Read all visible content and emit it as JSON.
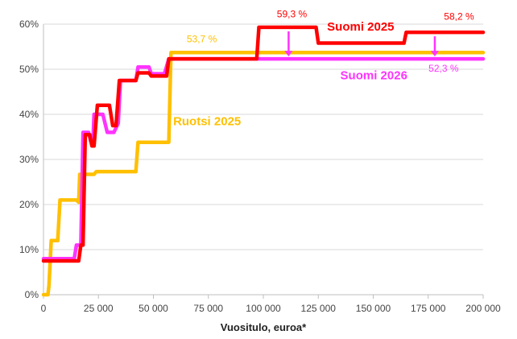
{
  "chart_data": {
    "type": "line",
    "xlabel": "Vuositulo, euroa*",
    "ylabel": "",
    "xlim": [
      0,
      200000
    ],
    "ylim": [
      0,
      60
    ],
    "x_ticks": [
      0,
      25000,
      50000,
      75000,
      100000,
      125000,
      150000,
      175000,
      200000
    ],
    "x_tick_labels": [
      "0",
      "25 000",
      "50 000",
      "75 000",
      "100 000",
      "125 000",
      "150 000",
      "175 000",
      "200 000"
    ],
    "y_ticks": [
      0,
      10,
      20,
      30,
      40,
      50,
      60
    ],
    "y_tick_labels": [
      "0%",
      "10%",
      "20%",
      "30%",
      "40%",
      "50%",
      "60%"
    ],
    "grid": "horizontal",
    "series": [
      {
        "name": "Ruotsi 2025",
        "color": "#ffc000",
        "points": [
          [
            0,
            0
          ],
          [
            2000,
            0
          ],
          [
            2500,
            2
          ],
          [
            3500,
            12
          ],
          [
            6500,
            12
          ],
          [
            7500,
            21
          ],
          [
            15000,
            21
          ],
          [
            16000,
            20.5
          ],
          [
            16500,
            26.7
          ],
          [
            23000,
            26.7
          ],
          [
            24000,
            27.3
          ],
          [
            42000,
            27.3
          ],
          [
            43000,
            33.8
          ],
          [
            57000,
            33.8
          ],
          [
            58000,
            53.7
          ],
          [
            200000,
            53.7
          ]
        ]
      },
      {
        "name": "Suomi 2026",
        "color": "#ff33ff",
        "points": [
          [
            0,
            8
          ],
          [
            14000,
            8
          ],
          [
            15000,
            11
          ],
          [
            17000,
            11
          ],
          [
            18000,
            36
          ],
          [
            20500,
            36
          ],
          [
            21500,
            34
          ],
          [
            22500,
            34
          ],
          [
            23000,
            40
          ],
          [
            27000,
            40
          ],
          [
            29000,
            36
          ],
          [
            32000,
            36
          ],
          [
            34000,
            38
          ],
          [
            35000,
            47.5
          ],
          [
            42000,
            47.5
          ],
          [
            43000,
            50.5
          ],
          [
            48000,
            50.5
          ],
          [
            49000,
            49
          ],
          [
            55000,
            49
          ],
          [
            57000,
            52.3
          ],
          [
            200000,
            52.3
          ]
        ]
      },
      {
        "name": "Suomi 2025",
        "color": "#ff0000",
        "points": [
          [
            0,
            7.5
          ],
          [
            16000,
            7.5
          ],
          [
            17000,
            11
          ],
          [
            18000,
            11
          ],
          [
            19000,
            35.5
          ],
          [
            21000,
            35.5
          ],
          [
            22000,
            33
          ],
          [
            23000,
            33
          ],
          [
            24500,
            42
          ],
          [
            30000,
            42
          ],
          [
            31500,
            37.5
          ],
          [
            33000,
            37.5
          ],
          [
            34500,
            47.5
          ],
          [
            42000,
            47.5
          ],
          [
            43000,
            49.2
          ],
          [
            48000,
            49.2
          ],
          [
            49000,
            48.5
          ],
          [
            56000,
            48.5
          ],
          [
            57000,
            52.3
          ],
          [
            97000,
            52.3
          ],
          [
            98000,
            59.3
          ],
          [
            124000,
            59.3
          ],
          [
            125000,
            55.8
          ],
          [
            164000,
            55.8
          ],
          [
            165000,
            58.2
          ],
          [
            200000,
            58.2
          ]
        ]
      }
    ],
    "annotations": [
      {
        "text": "59,3 %",
        "x": 113000,
        "y": 61.5,
        "color": "#ff0000"
      },
      {
        "text": "58,2 %",
        "x": 189000,
        "y": 61,
        "color": "#ff0000"
      },
      {
        "text": "53,7 %",
        "x": 72000,
        "y": 56,
        "color": "#ffc000"
      },
      {
        "text": "52,3 %",
        "x": 182000,
        "y": 49.5,
        "color": "#ff33ff"
      }
    ],
    "series_labels": [
      {
        "text": "Suomi 2025",
        "x": 129000,
        "y": 58.6,
        "color": "#ff0000"
      },
      {
        "text": "Suomi 2026",
        "x": 135000,
        "y": 47.8,
        "color": "#ff33ff"
      },
      {
        "text": "Ruotsi 2025",
        "x": 59000,
        "y": 37.6,
        "color": "#ffc000"
      }
    ],
    "arrows": [
      {
        "x": 111500,
        "y_from": 59.3,
        "y_to": 52.3,
        "color": "#ff33ff"
      },
      {
        "x": 178000,
        "y_from": 58.2,
        "y_to": 52.3,
        "color": "#ff33ff"
      }
    ]
  }
}
